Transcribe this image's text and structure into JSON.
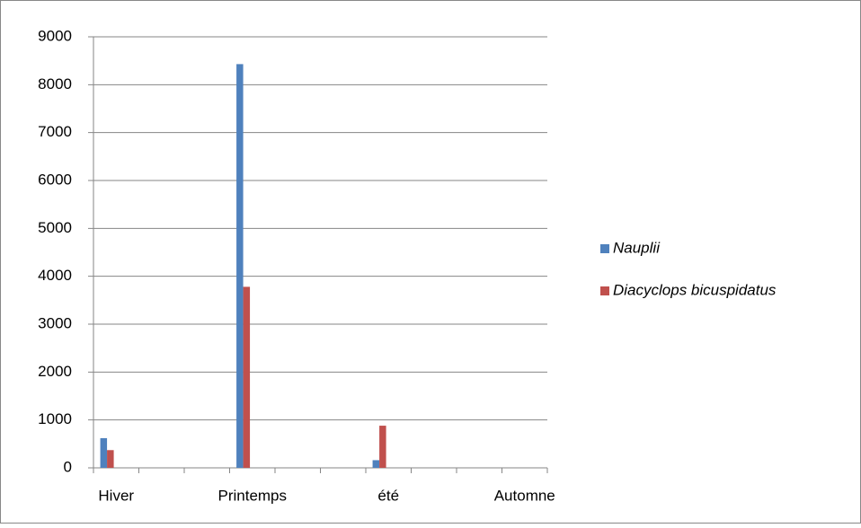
{
  "chart_data": {
    "type": "bar",
    "categories": [
      "Hiver",
      null,
      null,
      "Printemps",
      null,
      null,
      "été",
      null,
      null,
      "Automne"
    ],
    "series": [
      {
        "name": "Nauplii",
        "color": "#4f81bd",
        "values": [
          620,
          0,
          0,
          8430,
          0,
          0,
          160,
          0,
          0,
          0
        ]
      },
      {
        "name": "Diacyclops bicuspidatus",
        "color": "#c0504d",
        "values": [
          370,
          0,
          0,
          3780,
          0,
          0,
          880,
          0,
          0,
          0
        ]
      }
    ],
    "ylim": [
      0,
      9000
    ],
    "yticks": [
      0,
      1000,
      2000,
      3000,
      4000,
      5000,
      6000,
      7000,
      8000,
      9000
    ],
    "grid": true,
    "legend": "right"
  }
}
